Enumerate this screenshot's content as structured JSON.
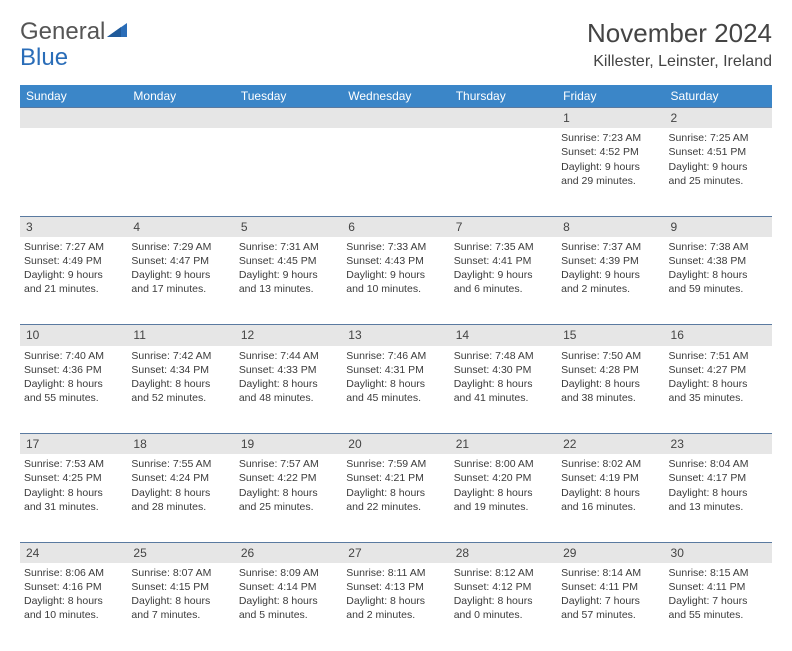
{
  "logo": {
    "text1": "General",
    "text2": "Blue"
  },
  "title": "November 2024",
  "location": "Killester, Leinster, Ireland",
  "colors": {
    "header_bg": "#3b86c8",
    "header_text": "#ffffff",
    "daynum_bg": "#e6e6e6",
    "border": "#5a7aa0",
    "text": "#3b3b3b",
    "logo_blue": "#2a6db8"
  },
  "day_labels": [
    "Sunday",
    "Monday",
    "Tuesday",
    "Wednesday",
    "Thursday",
    "Friday",
    "Saturday"
  ],
  "weeks": [
    {
      "nums": [
        "",
        "",
        "",
        "",
        "",
        "1",
        "2"
      ],
      "cells": [
        null,
        null,
        null,
        null,
        null,
        {
          "sunrise": "Sunrise: 7:23 AM",
          "sunset": "Sunset: 4:52 PM",
          "day1": "Daylight: 9 hours",
          "day2": "and 29 minutes."
        },
        {
          "sunrise": "Sunrise: 7:25 AM",
          "sunset": "Sunset: 4:51 PM",
          "day1": "Daylight: 9 hours",
          "day2": "and 25 minutes."
        }
      ]
    },
    {
      "nums": [
        "3",
        "4",
        "5",
        "6",
        "7",
        "8",
        "9"
      ],
      "cells": [
        {
          "sunrise": "Sunrise: 7:27 AM",
          "sunset": "Sunset: 4:49 PM",
          "day1": "Daylight: 9 hours",
          "day2": "and 21 minutes."
        },
        {
          "sunrise": "Sunrise: 7:29 AM",
          "sunset": "Sunset: 4:47 PM",
          "day1": "Daylight: 9 hours",
          "day2": "and 17 minutes."
        },
        {
          "sunrise": "Sunrise: 7:31 AM",
          "sunset": "Sunset: 4:45 PM",
          "day1": "Daylight: 9 hours",
          "day2": "and 13 minutes."
        },
        {
          "sunrise": "Sunrise: 7:33 AM",
          "sunset": "Sunset: 4:43 PM",
          "day1": "Daylight: 9 hours",
          "day2": "and 10 minutes."
        },
        {
          "sunrise": "Sunrise: 7:35 AM",
          "sunset": "Sunset: 4:41 PM",
          "day1": "Daylight: 9 hours",
          "day2": "and 6 minutes."
        },
        {
          "sunrise": "Sunrise: 7:37 AM",
          "sunset": "Sunset: 4:39 PM",
          "day1": "Daylight: 9 hours",
          "day2": "and 2 minutes."
        },
        {
          "sunrise": "Sunrise: 7:38 AM",
          "sunset": "Sunset: 4:38 PM",
          "day1": "Daylight: 8 hours",
          "day2": "and 59 minutes."
        }
      ]
    },
    {
      "nums": [
        "10",
        "11",
        "12",
        "13",
        "14",
        "15",
        "16"
      ],
      "cells": [
        {
          "sunrise": "Sunrise: 7:40 AM",
          "sunset": "Sunset: 4:36 PM",
          "day1": "Daylight: 8 hours",
          "day2": "and 55 minutes."
        },
        {
          "sunrise": "Sunrise: 7:42 AM",
          "sunset": "Sunset: 4:34 PM",
          "day1": "Daylight: 8 hours",
          "day2": "and 52 minutes."
        },
        {
          "sunrise": "Sunrise: 7:44 AM",
          "sunset": "Sunset: 4:33 PM",
          "day1": "Daylight: 8 hours",
          "day2": "and 48 minutes."
        },
        {
          "sunrise": "Sunrise: 7:46 AM",
          "sunset": "Sunset: 4:31 PM",
          "day1": "Daylight: 8 hours",
          "day2": "and 45 minutes."
        },
        {
          "sunrise": "Sunrise: 7:48 AM",
          "sunset": "Sunset: 4:30 PM",
          "day1": "Daylight: 8 hours",
          "day2": "and 41 minutes."
        },
        {
          "sunrise": "Sunrise: 7:50 AM",
          "sunset": "Sunset: 4:28 PM",
          "day1": "Daylight: 8 hours",
          "day2": "and 38 minutes."
        },
        {
          "sunrise": "Sunrise: 7:51 AM",
          "sunset": "Sunset: 4:27 PM",
          "day1": "Daylight: 8 hours",
          "day2": "and 35 minutes."
        }
      ]
    },
    {
      "nums": [
        "17",
        "18",
        "19",
        "20",
        "21",
        "22",
        "23"
      ],
      "cells": [
        {
          "sunrise": "Sunrise: 7:53 AM",
          "sunset": "Sunset: 4:25 PM",
          "day1": "Daylight: 8 hours",
          "day2": "and 31 minutes."
        },
        {
          "sunrise": "Sunrise: 7:55 AM",
          "sunset": "Sunset: 4:24 PM",
          "day1": "Daylight: 8 hours",
          "day2": "and 28 minutes."
        },
        {
          "sunrise": "Sunrise: 7:57 AM",
          "sunset": "Sunset: 4:22 PM",
          "day1": "Daylight: 8 hours",
          "day2": "and 25 minutes."
        },
        {
          "sunrise": "Sunrise: 7:59 AM",
          "sunset": "Sunset: 4:21 PM",
          "day1": "Daylight: 8 hours",
          "day2": "and 22 minutes."
        },
        {
          "sunrise": "Sunrise: 8:00 AM",
          "sunset": "Sunset: 4:20 PM",
          "day1": "Daylight: 8 hours",
          "day2": "and 19 minutes."
        },
        {
          "sunrise": "Sunrise: 8:02 AM",
          "sunset": "Sunset: 4:19 PM",
          "day1": "Daylight: 8 hours",
          "day2": "and 16 minutes."
        },
        {
          "sunrise": "Sunrise: 8:04 AM",
          "sunset": "Sunset: 4:17 PM",
          "day1": "Daylight: 8 hours",
          "day2": "and 13 minutes."
        }
      ]
    },
    {
      "nums": [
        "24",
        "25",
        "26",
        "27",
        "28",
        "29",
        "30"
      ],
      "cells": [
        {
          "sunrise": "Sunrise: 8:06 AM",
          "sunset": "Sunset: 4:16 PM",
          "day1": "Daylight: 8 hours",
          "day2": "and 10 minutes."
        },
        {
          "sunrise": "Sunrise: 8:07 AM",
          "sunset": "Sunset: 4:15 PM",
          "day1": "Daylight: 8 hours",
          "day2": "and 7 minutes."
        },
        {
          "sunrise": "Sunrise: 8:09 AM",
          "sunset": "Sunset: 4:14 PM",
          "day1": "Daylight: 8 hours",
          "day2": "and 5 minutes."
        },
        {
          "sunrise": "Sunrise: 8:11 AM",
          "sunset": "Sunset: 4:13 PM",
          "day1": "Daylight: 8 hours",
          "day2": "and 2 minutes."
        },
        {
          "sunrise": "Sunrise: 8:12 AM",
          "sunset": "Sunset: 4:12 PM",
          "day1": "Daylight: 8 hours",
          "day2": "and 0 minutes."
        },
        {
          "sunrise": "Sunrise: 8:14 AM",
          "sunset": "Sunset: 4:11 PM",
          "day1": "Daylight: 7 hours",
          "day2": "and 57 minutes."
        },
        {
          "sunrise": "Sunrise: 8:15 AM",
          "sunset": "Sunset: 4:11 PM",
          "day1": "Daylight: 7 hours",
          "day2": "and 55 minutes."
        }
      ]
    }
  ]
}
